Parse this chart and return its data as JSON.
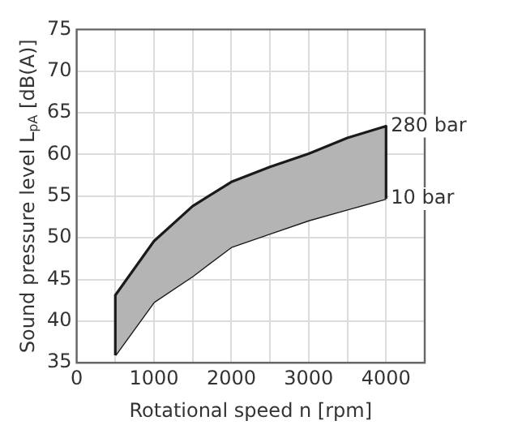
{
  "chart_data": {
    "type": "area",
    "xlabel": "Rotational speed n [rpm]",
    "ylabel": "Sound pressure level L$_{pA}$ [dB(A)]",
    "x": [
      500,
      1000,
      1500,
      2000,
      2500,
      3000,
      3500,
      4000
    ],
    "series": [
      {
        "name": "280 bar",
        "color": "#b4b4b4",
        "values": [
          43.1,
          49.6,
          53.8,
          56.7,
          58.5,
          60.1,
          62.0,
          63.4
        ]
      },
      {
        "name": "10 bar",
        "type": "line",
        "color": "#1a1a1a",
        "values": [
          35.9,
          42.3,
          45.4,
          48.9,
          50.5,
          52.1,
          53.4,
          54.7
        ]
      }
    ],
    "xlim": [
      0,
      4500
    ],
    "xticks": [
      0,
      {
        "value": 500,
        "label": null
      },
      1000,
      {
        "value": 1500,
        "label": null
      },
      2000,
      {
        "value": 2500,
        "label": null
      },
      3000,
      {
        "value": 3500,
        "label": null
      },
      4000
    ],
    "ylim": [
      35,
      75
    ],
    "yticks": [
      35,
      40,
      45,
      50,
      55,
      60,
      65,
      70,
      75
    ],
    "grid": true,
    "legend": false
  }
}
